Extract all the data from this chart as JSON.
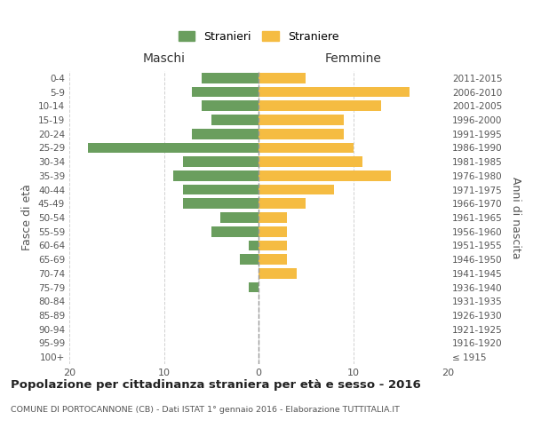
{
  "age_groups": [
    "100+",
    "95-99",
    "90-94",
    "85-89",
    "80-84",
    "75-79",
    "70-74",
    "65-69",
    "60-64",
    "55-59",
    "50-54",
    "45-49",
    "40-44",
    "35-39",
    "30-34",
    "25-29",
    "20-24",
    "15-19",
    "10-14",
    "5-9",
    "0-4"
  ],
  "birth_years": [
    "≤ 1915",
    "1916-1920",
    "1921-1925",
    "1926-1930",
    "1931-1935",
    "1936-1940",
    "1941-1945",
    "1946-1950",
    "1951-1955",
    "1956-1960",
    "1961-1965",
    "1966-1970",
    "1971-1975",
    "1976-1980",
    "1981-1985",
    "1986-1990",
    "1991-1995",
    "1996-2000",
    "2001-2005",
    "2006-2010",
    "2011-2015"
  ],
  "males": [
    0,
    0,
    0,
    0,
    0,
    1,
    0,
    2,
    1,
    5,
    4,
    8,
    8,
    9,
    8,
    18,
    7,
    5,
    6,
    7,
    6
  ],
  "females": [
    0,
    0,
    0,
    0,
    0,
    0,
    4,
    3,
    3,
    3,
    3,
    5,
    8,
    14,
    11,
    10,
    9,
    9,
    13,
    16,
    5
  ],
  "male_color": "#6a9e5e",
  "female_color": "#f5bc42",
  "title": "Popolazione per cittadinanza straniera per età e sesso - 2016",
  "subtitle": "COMUNE DI PORTOCANNONE (CB) - Dati ISTAT 1° gennaio 2016 - Elaborazione TUTTITALIA.IT",
  "ylabel_left": "Fasce di età",
  "ylabel_right": "Anni di nascita",
  "xlabel_left": "Maschi",
  "xlabel_right": "Femmine",
  "legend_male": "Stranieri",
  "legend_female": "Straniere",
  "xlim": 20,
  "background_color": "#ffffff",
  "grid_color": "#cccccc"
}
